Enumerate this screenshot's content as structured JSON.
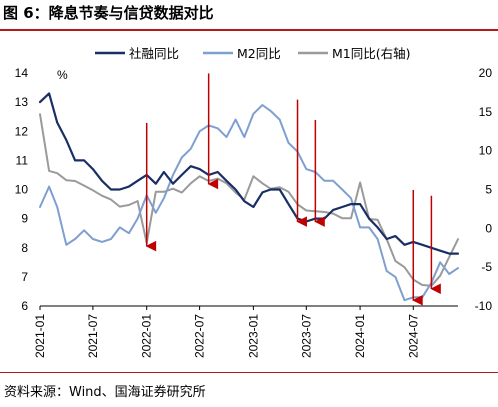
{
  "figure": {
    "title": "图 6：降息节奏与信贷数据对比",
    "source": "资料来源：Wind、国海证券研究所"
  },
  "colors": {
    "social_financing": "#1a2e66",
    "m2": "#7f9fd1",
    "m1": "#9a9a9a",
    "arrow": "#c00000",
    "rule": "#b31b1b"
  },
  "chart_data": {
    "type": "line",
    "left_axis": {
      "unit": "%",
      "ylim": [
        6,
        14
      ],
      "ticks": [
        "6",
        "7",
        "8",
        "9",
        "10",
        "11",
        "12",
        "13",
        "14"
      ]
    },
    "right_axis": {
      "ylim": [
        -10,
        20
      ],
      "ticks": [
        "-10",
        "-5",
        "0",
        "5",
        "10",
        "15",
        "20"
      ]
    },
    "x_ticks": [
      "2021-01",
      "2021-07",
      "2022-01",
      "2022-07",
      "2023-01",
      "2023-07",
      "2024-01",
      "2024-07"
    ],
    "legend_placement": "top",
    "grid": false,
    "series": [
      {
        "name": "社融同比",
        "axis": "left",
        "points": [
          [
            "2021-01",
            13.0
          ],
          [
            "2021-02",
            13.3
          ],
          [
            "2021-03",
            12.3
          ],
          [
            "2021-04",
            11.7
          ],
          [
            "2021-05",
            11.0
          ],
          [
            "2021-06",
            11.0
          ],
          [
            "2021-07",
            10.7
          ],
          [
            "2021-08",
            10.3
          ],
          [
            "2021-09",
            10.0
          ],
          [
            "2021-10",
            10.0
          ],
          [
            "2021-11",
            10.1
          ],
          [
            "2021-12",
            10.3
          ],
          [
            "2022-01",
            10.5
          ],
          [
            "2022-02",
            10.2
          ],
          [
            "2022-03",
            10.6
          ],
          [
            "2022-04",
            10.2
          ],
          [
            "2022-05",
            10.5
          ],
          [
            "2022-06",
            10.8
          ],
          [
            "2022-07",
            10.7
          ],
          [
            "2022-08",
            10.5
          ],
          [
            "2022-09",
            10.6
          ],
          [
            "2022-10",
            10.3
          ],
          [
            "2022-11",
            10.0
          ],
          [
            "2022-12",
            9.6
          ],
          [
            "2023-01",
            9.4
          ],
          [
            "2023-02",
            9.9
          ],
          [
            "2023-03",
            10.0
          ],
          [
            "2023-04",
            10.0
          ],
          [
            "2023-05",
            9.5
          ],
          [
            "2023-06",
            9.0
          ],
          [
            "2023-07",
            8.9
          ],
          [
            "2023-08",
            9.0
          ],
          [
            "2023-09",
            9.0
          ],
          [
            "2023-10",
            9.3
          ],
          [
            "2023-11",
            9.4
          ],
          [
            "2023-12",
            9.5
          ],
          [
            "2024-01",
            9.5
          ],
          [
            "2024-02",
            9.0
          ],
          [
            "2024-03",
            8.7
          ],
          [
            "2024-04",
            8.3
          ],
          [
            "2024-05",
            8.4
          ],
          [
            "2024-06",
            8.1
          ],
          [
            "2024-07",
            8.2
          ],
          [
            "2024-08",
            8.1
          ],
          [
            "2024-09",
            8.0
          ],
          [
            "2024-10",
            7.9
          ],
          [
            "2024-11",
            7.8
          ],
          [
            "2024-12",
            7.8
          ]
        ]
      },
      {
        "name": "M2同比",
        "axis": "left",
        "points": [
          [
            "2021-01",
            9.4
          ],
          [
            "2021-02",
            10.1
          ],
          [
            "2021-03",
            9.4
          ],
          [
            "2021-04",
            8.1
          ],
          [
            "2021-05",
            8.3
          ],
          [
            "2021-06",
            8.6
          ],
          [
            "2021-07",
            8.3
          ],
          [
            "2021-08",
            8.2
          ],
          [
            "2021-09",
            8.3
          ],
          [
            "2021-10",
            8.7
          ],
          [
            "2021-11",
            8.5
          ],
          [
            "2021-12",
            9.0
          ],
          [
            "2022-01",
            9.8
          ],
          [
            "2022-02",
            9.2
          ],
          [
            "2022-03",
            9.7
          ],
          [
            "2022-04",
            10.5
          ],
          [
            "2022-05",
            11.1
          ],
          [
            "2022-06",
            11.4
          ],
          [
            "2022-07",
            12.0
          ],
          [
            "2022-08",
            12.2
          ],
          [
            "2022-09",
            12.1
          ],
          [
            "2022-10",
            11.8
          ],
          [
            "2022-11",
            12.4
          ],
          [
            "2022-12",
            11.8
          ],
          [
            "2023-01",
            12.6
          ],
          [
            "2023-02",
            12.9
          ],
          [
            "2023-03",
            12.7
          ],
          [
            "2023-04",
            12.4
          ],
          [
            "2023-05",
            11.6
          ],
          [
            "2023-06",
            11.3
          ],
          [
            "2023-07",
            10.7
          ],
          [
            "2023-08",
            10.6
          ],
          [
            "2023-09",
            10.3
          ],
          [
            "2023-10",
            10.3
          ],
          [
            "2023-11",
            10.0
          ],
          [
            "2023-12",
            9.7
          ],
          [
            "2024-01",
            8.7
          ],
          [
            "2024-02",
            8.7
          ],
          [
            "2024-03",
            8.3
          ],
          [
            "2024-04",
            7.2
          ],
          [
            "2024-05",
            7.0
          ],
          [
            "2024-06",
            6.2
          ],
          [
            "2024-07",
            6.3
          ],
          [
            "2024-08",
            6.3
          ],
          [
            "2024-09",
            6.8
          ],
          [
            "2024-10",
            7.5
          ],
          [
            "2024-11",
            7.1
          ],
          [
            "2024-12",
            7.3
          ]
        ]
      },
      {
        "name": "M1同比(右轴)",
        "axis": "right",
        "points": [
          [
            "2021-01",
            14.7
          ],
          [
            "2021-02",
            7.4
          ],
          [
            "2021-03",
            7.1
          ],
          [
            "2021-04",
            6.2
          ],
          [
            "2021-05",
            6.1
          ],
          [
            "2021-06",
            5.5
          ],
          [
            "2021-07",
            4.9
          ],
          [
            "2021-08",
            4.2
          ],
          [
            "2021-09",
            3.7
          ],
          [
            "2021-10",
            2.8
          ],
          [
            "2021-11",
            3.0
          ],
          [
            "2021-12",
            3.5
          ],
          [
            "2022-01",
            -1.9
          ],
          [
            "2022-02",
            4.7
          ],
          [
            "2022-03",
            4.7
          ],
          [
            "2022-04",
            5.1
          ],
          [
            "2022-05",
            4.6
          ],
          [
            "2022-06",
            5.8
          ],
          [
            "2022-07",
            6.7
          ],
          [
            "2022-08",
            6.1
          ],
          [
            "2022-09",
            6.4
          ],
          [
            "2022-10",
            5.8
          ],
          [
            "2022-11",
            4.6
          ],
          [
            "2022-12",
            3.7
          ],
          [
            "2023-01",
            6.7
          ],
          [
            "2023-02",
            5.8
          ],
          [
            "2023-03",
            5.1
          ],
          [
            "2023-04",
            5.3
          ],
          [
            "2023-05",
            4.7
          ],
          [
            "2023-06",
            3.1
          ],
          [
            "2023-07",
            2.3
          ],
          [
            "2023-08",
            2.2
          ],
          [
            "2023-09",
            2.1
          ],
          [
            "2023-10",
            1.9
          ],
          [
            "2023-11",
            1.3
          ],
          [
            "2023-12",
            1.3
          ],
          [
            "2024-01",
            5.9
          ],
          [
            "2024-02",
            1.2
          ],
          [
            "2024-03",
            1.1
          ],
          [
            "2024-04",
            -1.4
          ],
          [
            "2024-05",
            -4.2
          ],
          [
            "2024-06",
            -5.0
          ],
          [
            "2024-07",
            -6.6
          ],
          [
            "2024-08",
            -7.3
          ],
          [
            "2024-09",
            -7.4
          ],
          [
            "2024-10",
            -6.1
          ],
          [
            "2024-11",
            -3.7
          ],
          [
            "2024-12",
            -1.4
          ]
        ]
      }
    ],
    "rate_cut_markers": [
      "2022-01",
      "2022-08",
      "2023-06",
      "2023-08",
      "2024-07",
      "2024-09"
    ]
  }
}
